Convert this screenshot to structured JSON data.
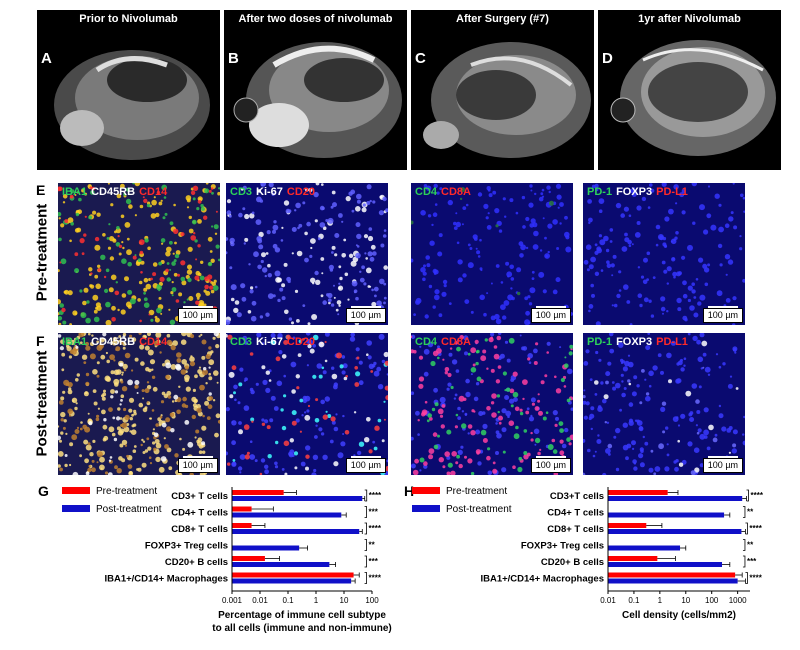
{
  "mri_panels": [
    {
      "letter": "A",
      "caption": "Prior to Nivolumab"
    },
    {
      "letter": "B",
      "caption": "After two doses of nivolumab"
    },
    {
      "letter": "C",
      "caption": "After Surgery (#7)"
    },
    {
      "letter": "D",
      "caption": "1yr after Nivolumab"
    }
  ],
  "rows": [
    {
      "letter": "E",
      "label": "Pre-treatment"
    },
    {
      "letter": "F",
      "label": "Post-treatment"
    }
  ],
  "stain_panels": [
    {
      "markers": [
        {
          "text": "IBA1",
          "color": "green"
        },
        {
          "text": "CD45RB",
          "color": "white"
        },
        {
          "text": "CD14",
          "color": "red"
        }
      ]
    },
    {
      "markers": [
        {
          "text": "CD3",
          "color": "green"
        },
        {
          "text": "Ki-67",
          "color": "white"
        },
        {
          "text": "CD20",
          "color": "red"
        }
      ]
    },
    {
      "markers": [
        {
          "text": "CD4",
          "color": "green"
        },
        {
          "text": "CD8A",
          "color": "red"
        }
      ]
    },
    {
      "markers": [
        {
          "text": "PD-1",
          "color": "green"
        },
        {
          "text": "FOXP3",
          "color": "white"
        },
        {
          "text": "PD-L1",
          "color": "red"
        }
      ]
    }
  ],
  "scale_bar": "100 µm",
  "colors": {
    "pre": "#ff0000",
    "post": "#1010c8",
    "green": "#2dd05a",
    "red": "#ff2a2a"
  },
  "chart_data": [
    {
      "letter": "G",
      "type": "bar",
      "orientation": "horizontal",
      "scale": "log",
      "categories": [
        "CD3+ T cells",
        "CD4+ T cells",
        "CD8+ T cells",
        "FOXP3+ Treg cells",
        "CD20+ B cells",
        "IBA1+/CD14+ Macrophages"
      ],
      "series": [
        {
          "name": "Pre-treatment",
          "values": [
            0.07,
            0.005,
            0.005,
            null,
            0.015,
            22
          ]
        },
        {
          "name": "Post-treatment",
          "values": [
            45,
            8,
            35,
            0.25,
            3,
            18
          ]
        }
      ],
      "errors": {
        "pre": [
          0.2,
          0.03,
          0.015,
          null,
          0.05,
          35
        ],
        "post": [
          55,
          12,
          45,
          0.5,
          5,
          25
        ]
      },
      "significance": [
        "****",
        "***",
        "****",
        "**",
        "***",
        "****"
      ],
      "xticks": [
        "0.001",
        "0.01",
        "0.1",
        "1",
        "10",
        "100"
      ],
      "xlim": [
        0.001,
        100
      ],
      "xlabel_line1": "Percentage of immune cell subtype",
      "xlabel_line2": "to all cells (immune and non-immune)",
      "legend": "top-left"
    },
    {
      "letter": "H",
      "type": "bar",
      "orientation": "horizontal",
      "scale": "log",
      "categories": [
        "CD3+T cells",
        "CD4+ T cells",
        "CD8+ T cells",
        "FOXP3+ Treg cells",
        "CD20+ B cells",
        "IBA1+/CD14+ Macrophages"
      ],
      "series": [
        {
          "name": "Pre-treatment",
          "values": [
            2,
            null,
            0.3,
            null,
            0.8,
            800
          ]
        },
        {
          "name": "Post-treatment",
          "values": [
            1500,
            300,
            1400,
            6,
            250,
            1000
          ]
        }
      ],
      "errors": {
        "pre": [
          5,
          null,
          1.2,
          null,
          4,
          1500
        ],
        "post": [
          2200,
          500,
          2000,
          10,
          500,
          2000
        ]
      },
      "significance": [
        "****",
        "**",
        "****",
        "**",
        "***",
        "****"
      ],
      "xticks": [
        "0.01",
        "0.1",
        "1",
        "10",
        "100",
        "1000"
      ],
      "xlim": [
        0.01,
        3000
      ],
      "xlabel_line1": "Cell density (cells/mm2)",
      "xlabel_line2": "",
      "legend": "top-left"
    }
  ]
}
